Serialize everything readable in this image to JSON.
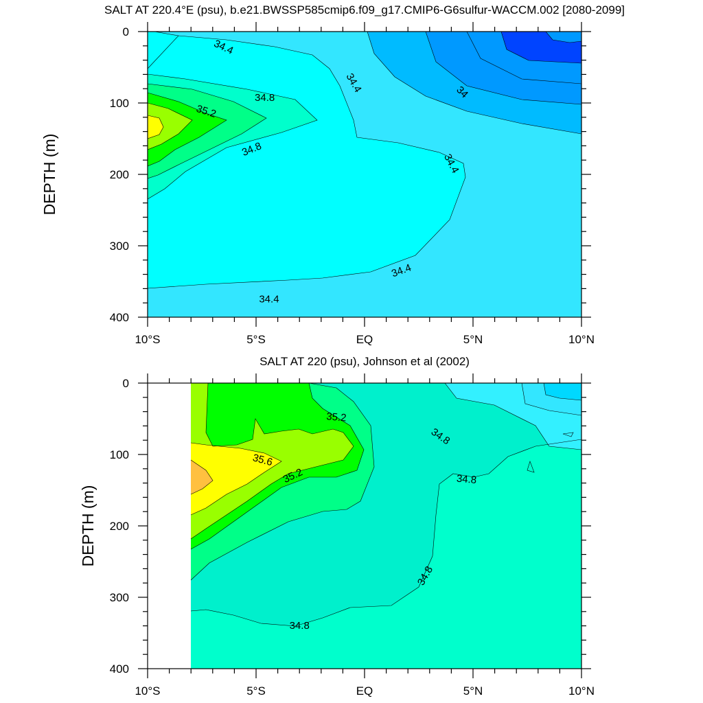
{
  "chart_data": [
    {
      "type": "heatmap",
      "subtype": "contour",
      "title": "SALT AT 220.4°E (psu), b.e21.BWSSP585cmip6.f09_g17.CMIP6-G6sulfur-WACCM.002 [2080-2099]",
      "ylabel": "DEPTH (m)",
      "xlim": [
        -10,
        10
      ],
      "ylim": [
        0,
        400
      ],
      "y_inverted": true,
      "x_tick_labels": [
        "10°S",
        "5°S",
        "EQ",
        "5°N",
        "10°N"
      ],
      "y_tick_labels": [
        "0",
        "100",
        "200",
        "300",
        "400"
      ],
      "contour_labels": [
        {
          "text": "34.4",
          "lat": -6.5,
          "depth": 22,
          "angle": 25
        },
        {
          "text": "34.8",
          "lat": -4.6,
          "depth": 93,
          "angle": 0
        },
        {
          "text": "35.2",
          "lat": -7.3,
          "depth": 112,
          "angle": 18
        },
        {
          "text": "34.8",
          "lat": -5.2,
          "depth": 165,
          "angle": -22
        },
        {
          "text": "34.4",
          "lat": -0.5,
          "depth": 72,
          "angle": 60
        },
        {
          "text": "34",
          "lat": 4.5,
          "depth": 85,
          "angle": 45
        },
        {
          "text": "34.4",
          "lat": 4.0,
          "depth": 185,
          "angle": 62
        },
        {
          "text": "34.4",
          "lat": 1.7,
          "depth": 335,
          "angle": -20
        },
        {
          "text": "34.4",
          "lat": -4.4,
          "depth": 375,
          "angle": 0
        }
      ]
    },
    {
      "type": "heatmap",
      "subtype": "contour",
      "title": "SALT AT 220 (psu), Johnson et al (2002)",
      "ylabel": "DEPTH (m)",
      "xlim": [
        -10,
        10
      ],
      "ylim": [
        0,
        400
      ],
      "y_inverted": true,
      "x_tick_labels": [
        "10°S",
        "5°S",
        "EQ",
        "5°N",
        "10°N"
      ],
      "y_tick_labels": [
        "0",
        "100",
        "200",
        "300",
        "400"
      ],
      "contour_labels": [
        {
          "text": "35.2",
          "lat": -1.3,
          "depth": 48,
          "angle": 5
        },
        {
          "text": "35.6",
          "lat": -4.7,
          "depth": 108,
          "angle": 15
        },
        {
          "text": "35.2",
          "lat": -3.3,
          "depth": 130,
          "angle": -25
        },
        {
          "text": "34.8",
          "lat": 3.5,
          "depth": 75,
          "angle": 35
        },
        {
          "text": "34.8",
          "lat": 4.7,
          "depth": 135,
          "angle": 5
        },
        {
          "text": "34.8",
          "lat": 2.8,
          "depth": 270,
          "angle": -60
        },
        {
          "text": "34.8",
          "lat": -3.0,
          "depth": 340,
          "angle": 0
        }
      ]
    }
  ],
  "colors": {
    "s33_8": "#0044ff",
    "s34_0": "#0099ff",
    "s34_2": "#00bbff",
    "s34_4": "#33e6ff",
    "s34_6": "#00ffff",
    "s34_8": "#00ffcc",
    "s35_0": "#00ff88",
    "s35_2": "#00ff00",
    "s35_4": "#99ff00",
    "s35_6": "#ffff00",
    "s35_8": "#ffc040",
    "s34_6_low": "#33f0ff",
    "s34_9": "#00f0cc",
    "s34_7": "#00d8ff"
  }
}
